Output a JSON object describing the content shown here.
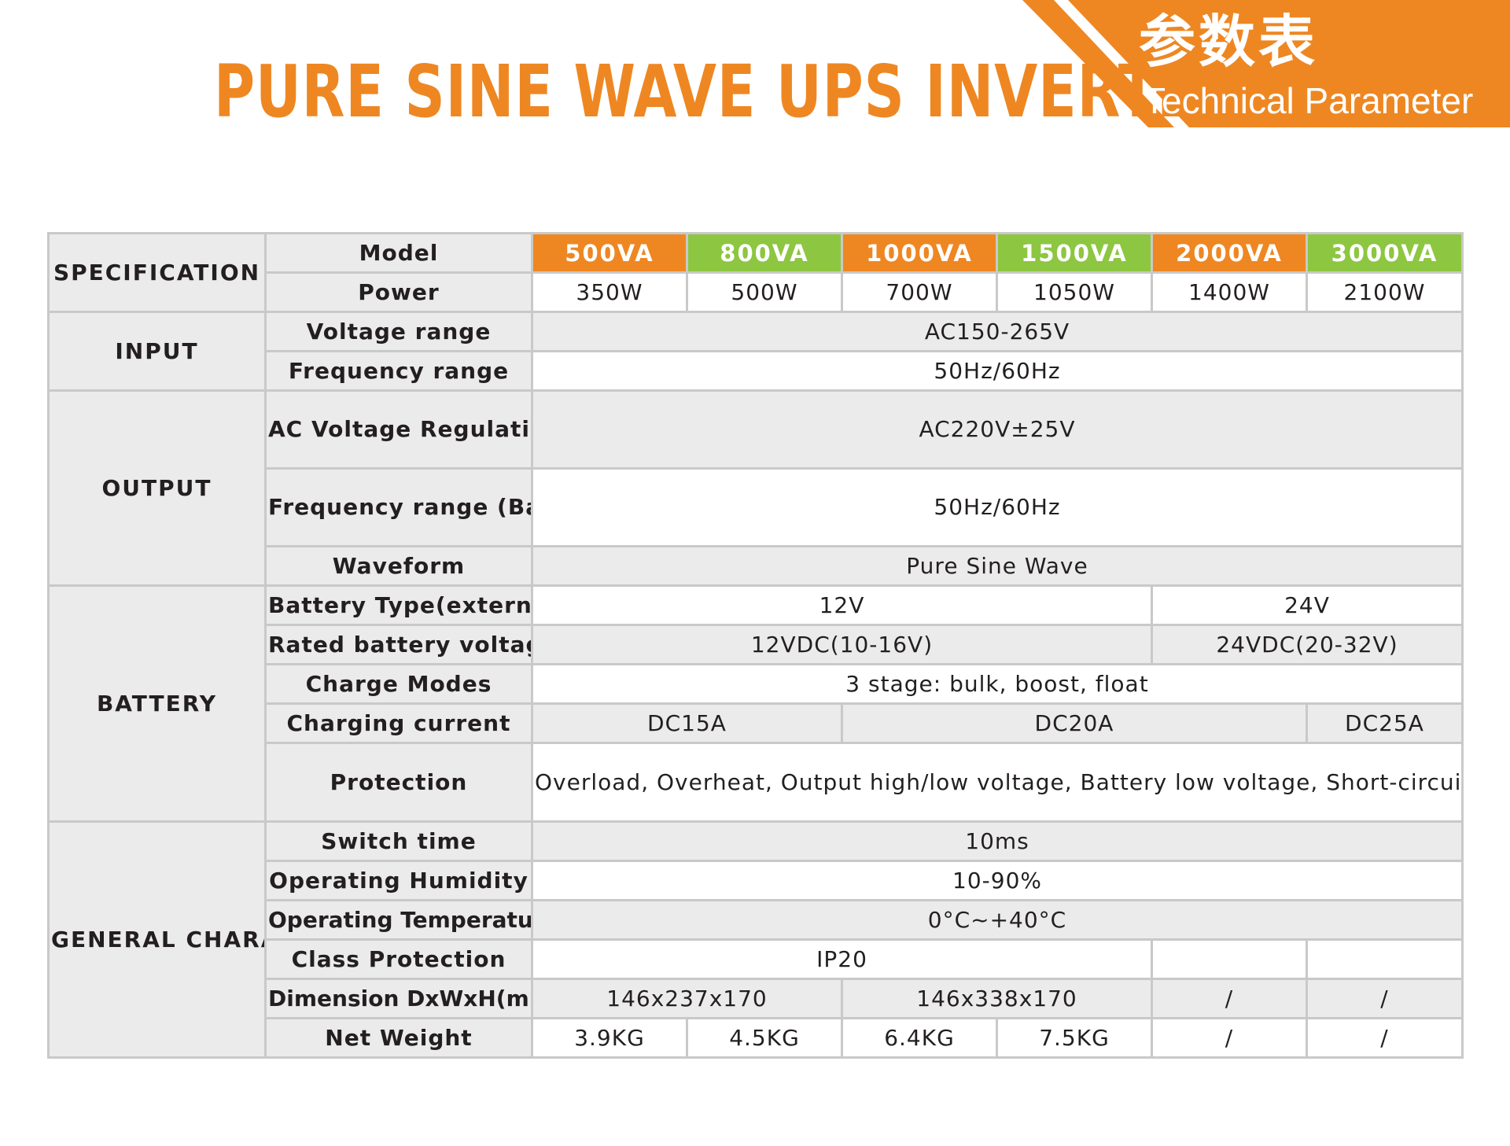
{
  "header": {
    "title": "PURE SINE WAVE UPS INVERTER",
    "banner_cn": "参数表",
    "banner_en": "Technical Parameter"
  },
  "colors": {
    "accent_orange": "#ee8722",
    "accent_green": "#8dc641",
    "row_gray": "#ebebeb",
    "border": "#c9c9c9"
  },
  "table": {
    "sections": {
      "specification": "SPECIFICATION",
      "input": "INPUT",
      "output": "OUTPUT",
      "battery": "BATTERY",
      "general": "GENERAL\nCHARACTERISTICS"
    },
    "labels": {
      "model": "Model",
      "power": "Power",
      "voltage_range": "Voltage range",
      "frequency_range": "Frequency range",
      "ac_voltage_regulation": "AC Voltage Regulation\n(Batt. Mode)",
      "frequency_range_batt": "Frequency range\n(Batt. Mode)",
      "waveform": "Waveform",
      "battery_type": "Battery Type(external)",
      "rated_battery_voltage": "Rated battery voltage",
      "charge_modes": "Charge Modes",
      "charging_current": "Charging current",
      "protection": "Protection",
      "switch_time": "Switch time",
      "operating_humidity": "Operating Humidity",
      "operating_temperature": "Operating Temperature",
      "class_protection": "Class Protection",
      "dimension": "Dimension DxWxH(mm)",
      "net_weight": "Net Weight"
    },
    "models": [
      "500VA",
      "800VA",
      "1000VA",
      "1500VA",
      "2000VA",
      "3000VA"
    ],
    "powers": [
      "350W",
      "500W",
      "700W",
      "1050W",
      "1400W",
      "2100W"
    ],
    "values": {
      "voltage_range": "AC150-265V",
      "frequency_range": "50Hz/60Hz",
      "ac_voltage_regulation": "AC220V±25V",
      "frequency_range_batt": "50Hz/60Hz",
      "waveform": "Pure Sine Wave",
      "battery_type_12": "12V",
      "battery_type_24": "24V",
      "rated_battery_voltage_12": "12VDC(10-16V)",
      "rated_battery_voltage_24": "24VDC(20-32V)",
      "charge_modes": "3 stage: bulk, boost, float",
      "charging_current_15": "DC15A",
      "charging_current_20": "DC20A",
      "charging_current_25": "DC25A",
      "protection": "Overload, Overheat, Output high/low voltage, Battery low voltage,\nShort-circuit, Over-charge, Over-discharge",
      "switch_time": "10ms",
      "operating_humidity": "10-90%",
      "operating_temperature": "0°C~+40°C",
      "class_protection": "IP20",
      "dimension_small": "146x237x170",
      "dimension_large": "146x338x170",
      "dimension_2000": "/",
      "dimension_3000": "/",
      "weights": [
        "3.9KG",
        "4.5KG",
        "6.4KG",
        "7.5KG",
        "/",
        "/"
      ]
    }
  }
}
